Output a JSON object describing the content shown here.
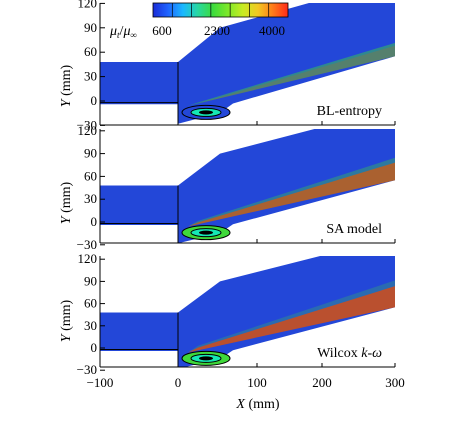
{
  "colorbar": {
    "label_main": "μ",
    "label_sub1": "t",
    "label_sep": "/",
    "label_main2": "μ",
    "label_sub2": "∞",
    "ticks": [
      "600",
      "2300",
      "4000"
    ],
    "colors": [
      "#1a2cd6",
      "#1f64ff",
      "#1ab8ff",
      "#28d8a0",
      "#3ddc3d",
      "#7ee82a",
      "#c8ec22",
      "#f2c822",
      "#ff7a1a",
      "#ff2a1a"
    ]
  },
  "colors": {
    "field": "#2347d8",
    "wedge_green": "#3fd83a",
    "shear_red": "#ee2222",
    "bubble": "#15e8b5"
  },
  "panels": [
    {
      "label": "BL-entropy",
      "y_ticks": [
        "120",
        "90",
        "60",
        "30",
        "0",
        "−30"
      ]
    },
    {
      "label": "SA model",
      "y_ticks": [
        "120",
        "90",
        "60",
        "30",
        "0",
        "−30"
      ]
    },
    {
      "label_main": "Wilcox ",
      "label_k": "k",
      "label_dash": "-",
      "label_w": "ω",
      "y_ticks": [
        "120",
        "90",
        "60",
        "30",
        "0",
        "−30"
      ]
    }
  ],
  "axes": {
    "y_label_var": "Y",
    "y_label_unit": " (mm)",
    "x_label_var": "X",
    "x_label_unit": " (mm)",
    "x_ticks": [
      "−100",
      "0",
      "100",
      "200",
      "300"
    ]
  }
}
